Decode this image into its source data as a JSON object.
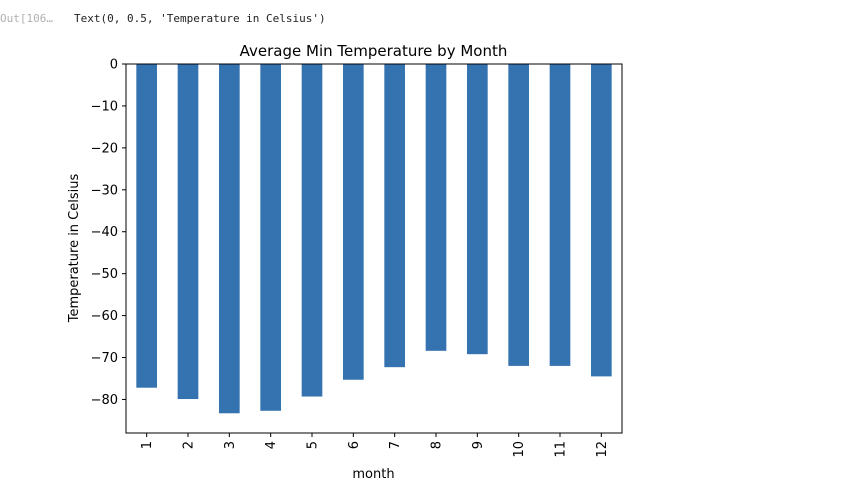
{
  "output_cell": {
    "prompt": "Out[106…",
    "text": "Text(0, 0.5, 'Temperature in Celsius')"
  },
  "chart_data": {
    "type": "bar",
    "title": "Average Min Temperature by Month",
    "xlabel": "month",
    "ylabel": "Temperature in Celsius",
    "categories": [
      "1",
      "2",
      "3",
      "4",
      "5",
      "6",
      "7",
      "8",
      "9",
      "10",
      "11",
      "12"
    ],
    "values": [
      -77.2,
      -79.9,
      -83.3,
      -82.7,
      -79.3,
      -75.3,
      -72.3,
      -68.4,
      -69.2,
      -72.0,
      -72.0,
      -74.5
    ],
    "ylim": [
      -88,
      0
    ],
    "yticks": [
      0,
      -10,
      -20,
      -30,
      -40,
      -50,
      -60,
      -70,
      -80
    ],
    "ytick_labels": [
      "0",
      "−10",
      "−20",
      "−30",
      "−40",
      "−50",
      "−60",
      "−70",
      "−80"
    ],
    "bar_color": "#3572b0",
    "grid": false,
    "legend": "none"
  }
}
